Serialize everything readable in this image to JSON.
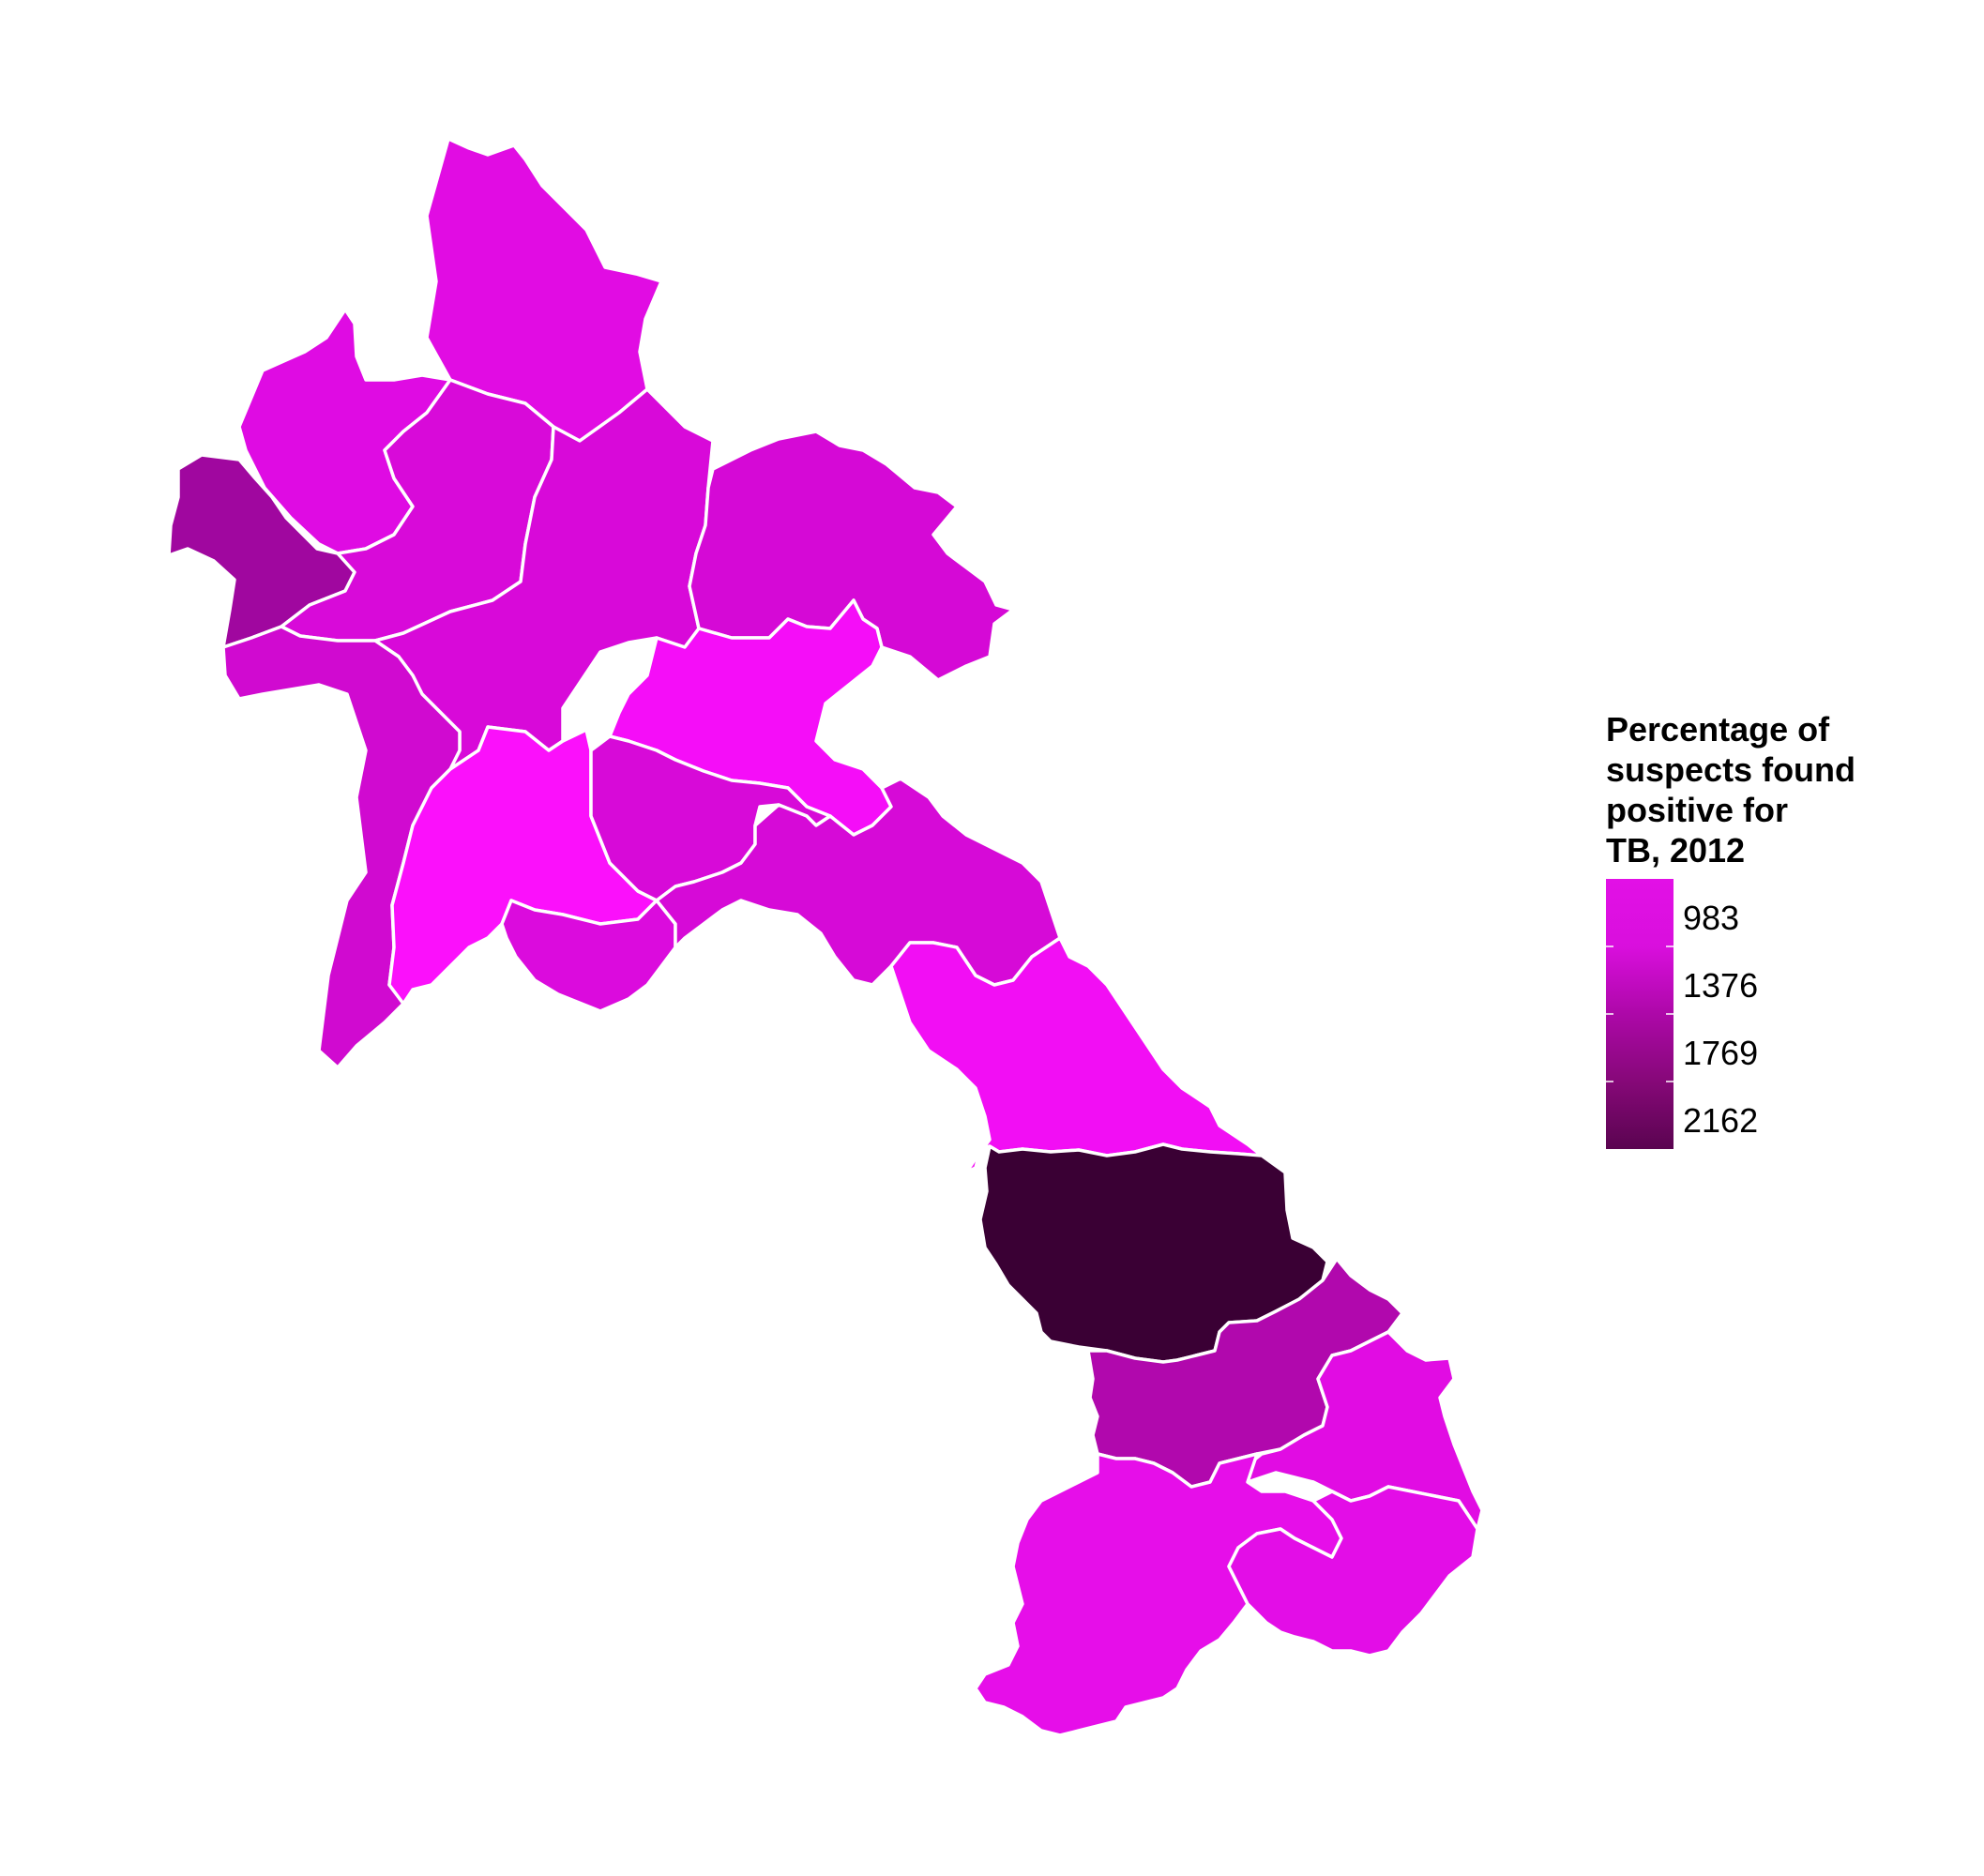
{
  "legend": {
    "title": "Percentage of\nsuspects found\npositive for\nTB, 2012",
    "bins": [
      {
        "label": "983",
        "color": "#d90fdd"
      },
      {
        "label": "1376",
        "color": "#ad08a8"
      },
      {
        "label": "1769",
        "color": "#860878"
      },
      {
        "label": "2162",
        "color": "#5a0450"
      }
    ],
    "gradient_top_color": "#e210e6"
  },
  "regions": [
    {
      "id": "phongsali",
      "color": "#e10ce3"
    },
    {
      "id": "luang-namtha",
      "color": "#df0be3"
    },
    {
      "id": "bokeo",
      "color": "#a0079f"
    },
    {
      "id": "oudomxay",
      "color": "#d80ad9"
    },
    {
      "id": "luang-prabang",
      "color": "#d809d9"
    },
    {
      "id": "houaphan",
      "color": "#d509d6"
    },
    {
      "id": "sainyabuli",
      "color": "#d00ad0"
    },
    {
      "id": "xiangkhouang",
      "color": "#f50df8"
    },
    {
      "id": "vientiane",
      "color": "#fb10fb"
    },
    {
      "id": "xaisomboun",
      "color": "#d70ad8"
    },
    {
      "id": "vientiane-capital",
      "color": "#db0bdd"
    },
    {
      "id": "bolikhamxai",
      "color": "#d60ad7"
    },
    {
      "id": "khammouan",
      "color": "#f20ef4"
    },
    {
      "id": "savannakhet",
      "color": "#3a0034"
    },
    {
      "id": "salavan",
      "color": "#b108ad"
    },
    {
      "id": "sekong",
      "color": "#e10ce3"
    },
    {
      "id": "champasak",
      "color": "#e60ee9"
    },
    {
      "id": "attapeu",
      "color": "#e30de7"
    }
  ]
}
